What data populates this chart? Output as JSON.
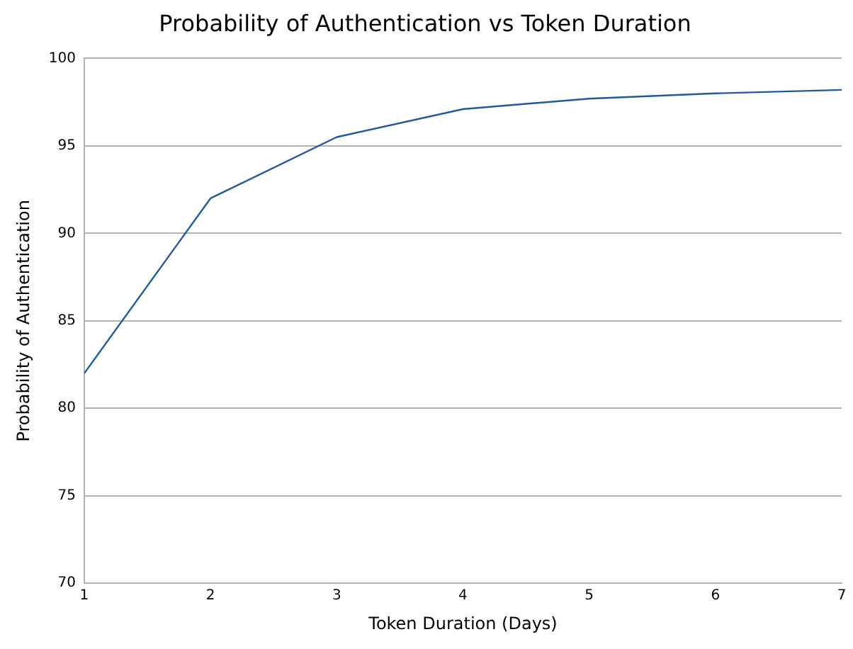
{
  "chart_data": {
    "type": "line",
    "title": "Probability of Authentication vs Token Duration",
    "xlabel": "Token Duration (Days)",
    "ylabel": "Probability of Authentication",
    "x": [
      1,
      2,
      3,
      4,
      5,
      6,
      7
    ],
    "series": [
      {
        "color": "#1f5a9e",
        "values": [
          82,
          92,
          95.5,
          97.1,
          97.7,
          98,
          98.2
        ]
      }
    ],
    "xlim": [
      1,
      7
    ],
    "xticks": [
      1,
      2,
      3,
      4,
      5,
      6,
      7
    ],
    "ylim": [
      70,
      100
    ],
    "yticks": [
      70,
      75,
      80,
      85,
      90,
      95,
      100
    ],
    "grid": "y",
    "legend": false,
    "marker": "none",
    "line_style": "solid"
  }
}
